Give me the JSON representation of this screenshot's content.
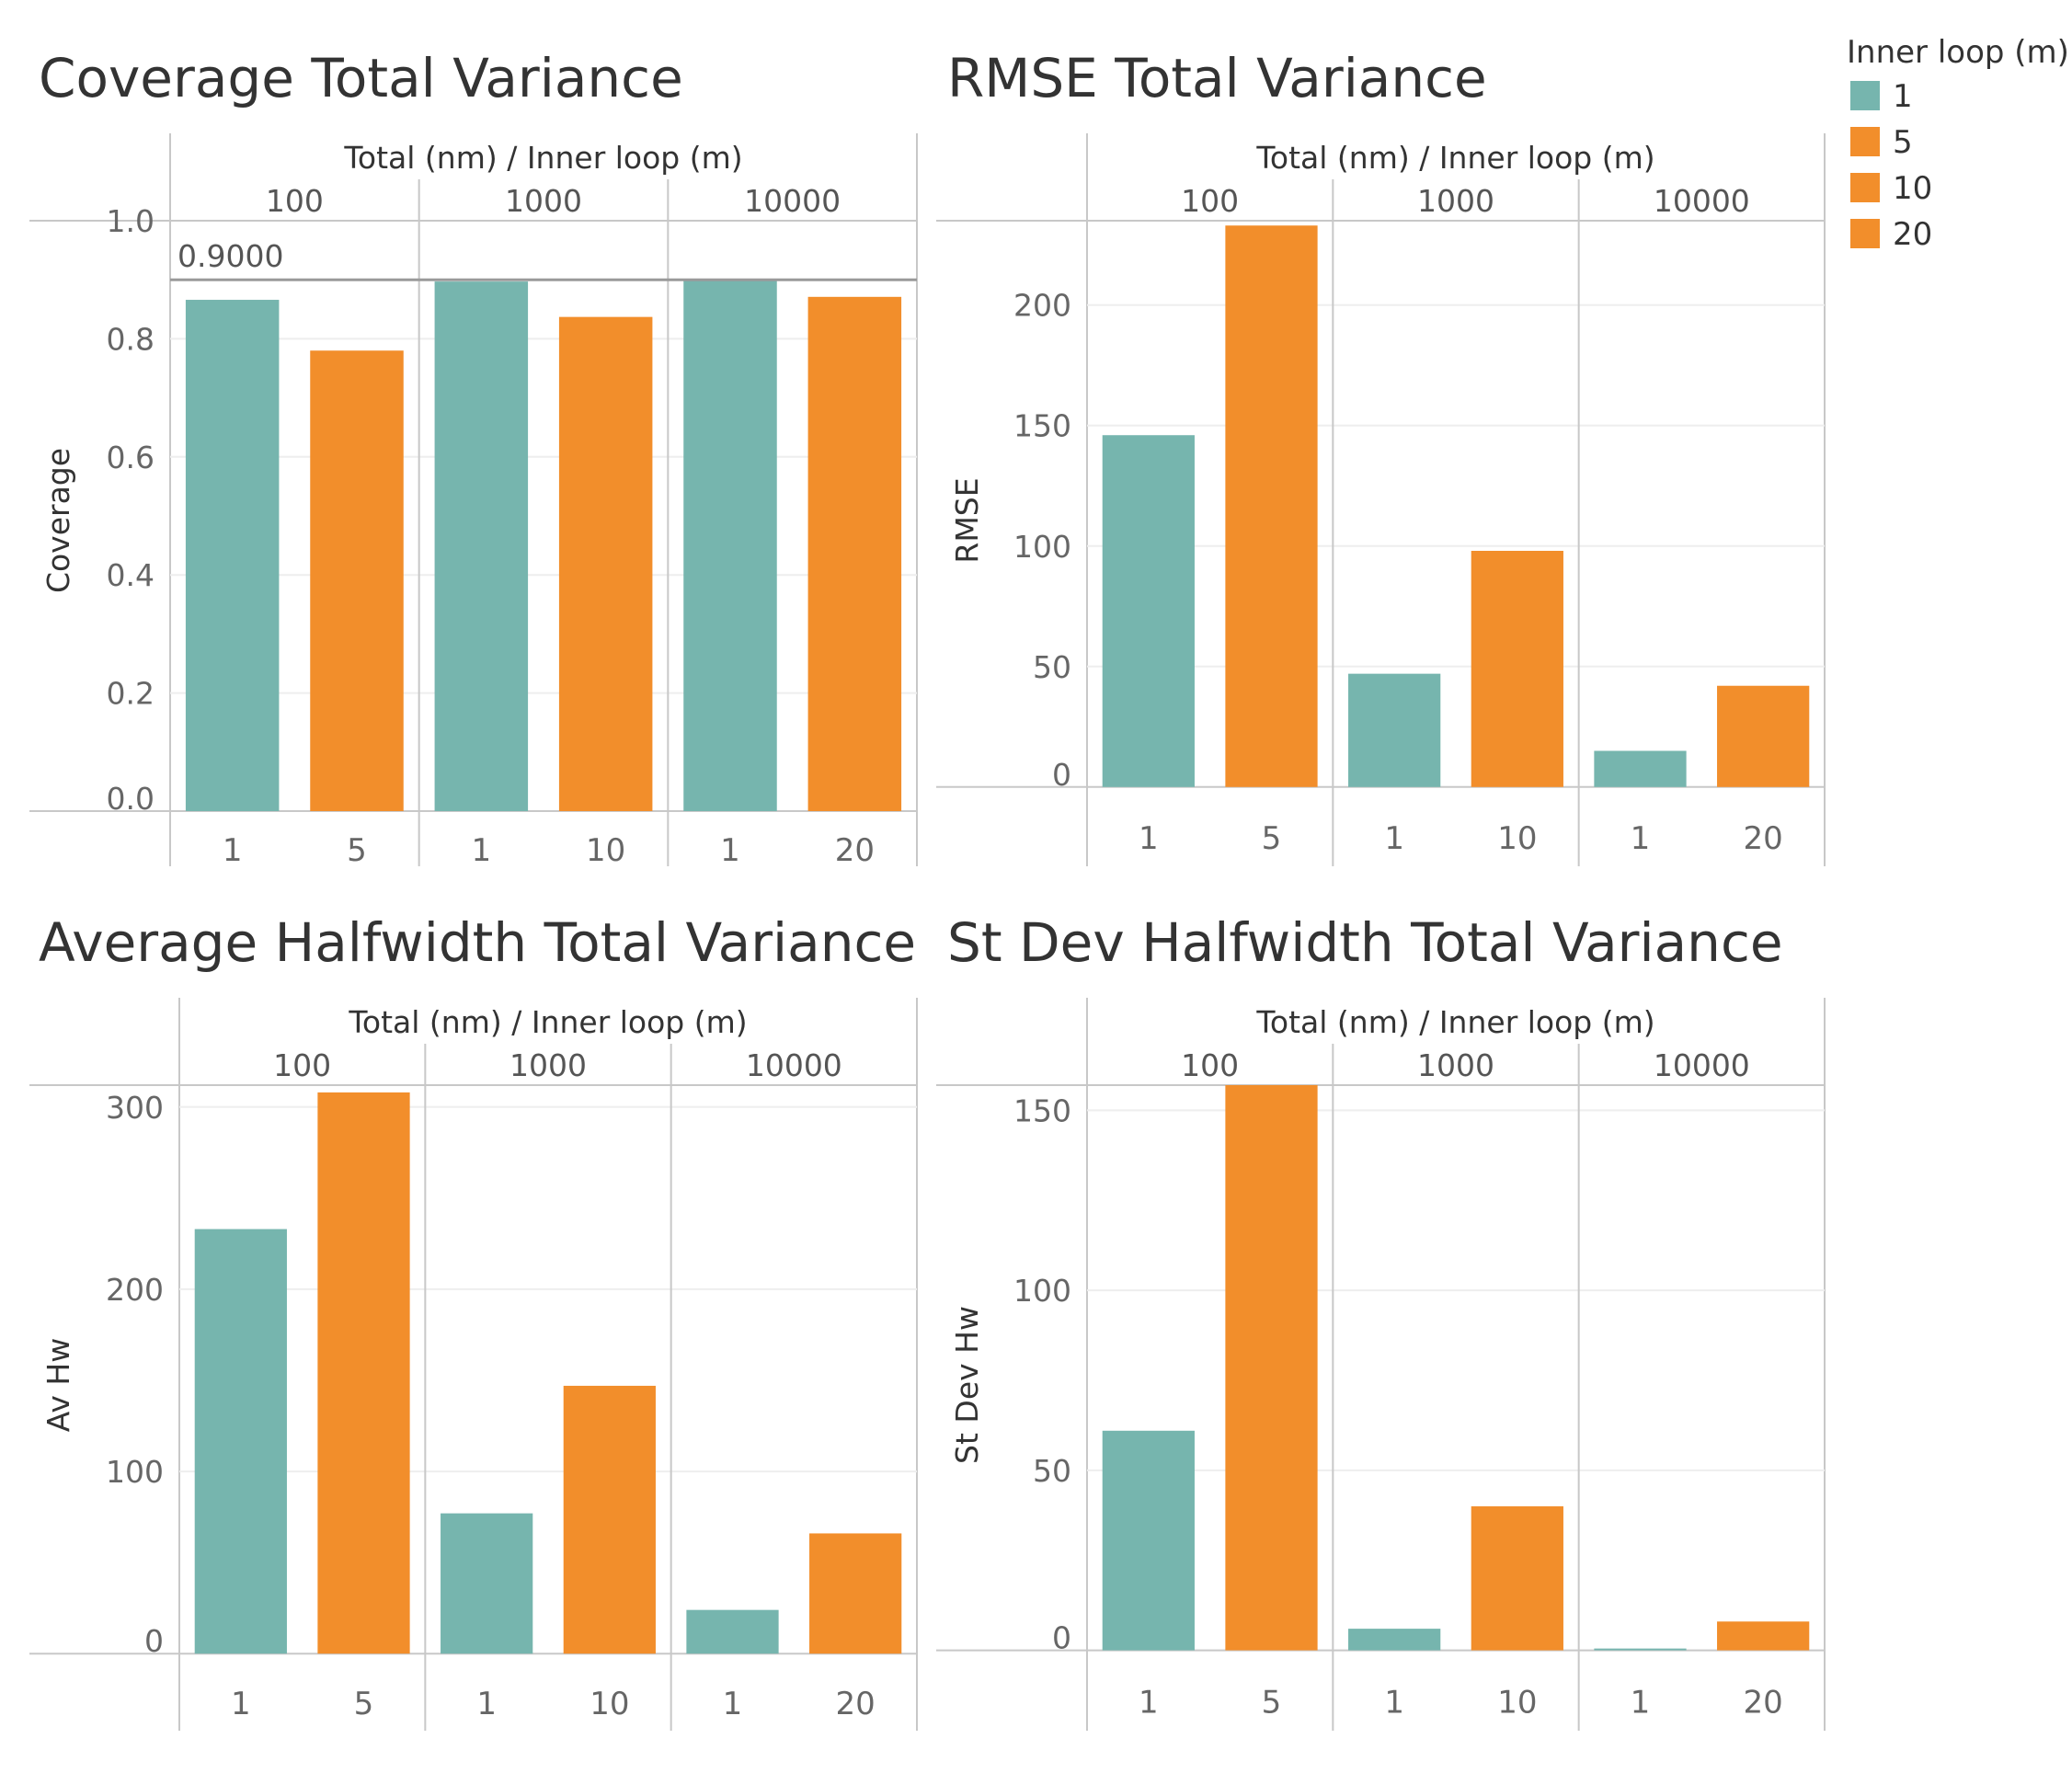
{
  "legend": {
    "title": "Inner loop (m)",
    "items": [
      {
        "label": "1",
        "color": "#76b5ae"
      },
      {
        "label": "5",
        "color": "#f28e2b"
      },
      {
        "label": "10",
        "color": "#f28e2b"
      },
      {
        "label": "20",
        "color": "#f28e2b"
      }
    ]
  },
  "colors": {
    "teal": "#76b5ae",
    "orange": "#f28e2b"
  },
  "chart_data": [
    {
      "type": "bar",
      "title": "Coverage Total Variance",
      "header": "Total (nm) / Inner loop (m)",
      "ylabel": "Coverage",
      "ylim": [
        0,
        1.0
      ],
      "yticks": [
        {
          "value": 0,
          "label": "0.0"
        },
        {
          "value": 0.2,
          "label": "0.2"
        },
        {
          "value": 0.4,
          "label": "0.4"
        },
        {
          "value": 0.6,
          "label": "0.6"
        },
        {
          "value": 0.8,
          "label": "0.8"
        },
        {
          "value": 1.0,
          "label": "1.0"
        }
      ],
      "reference_line": {
        "value": 0.9,
        "label": "0.9000"
      },
      "groups": [
        {
          "total": "100",
          "bars": [
            {
              "inner": "1",
              "value": 0.866,
              "color": "teal"
            },
            {
              "inner": "5",
              "value": 0.78,
              "color": "orange"
            }
          ]
        },
        {
          "total": "1000",
          "bars": [
            {
              "inner": "1",
              "value": 0.897,
              "color": "teal"
            },
            {
              "inner": "10",
              "value": 0.837,
              "color": "orange"
            }
          ]
        },
        {
          "total": "10000",
          "bars": [
            {
              "inner": "1",
              "value": 0.9,
              "color": "teal"
            },
            {
              "inner": "20",
              "value": 0.871,
              "color": "orange"
            }
          ]
        }
      ]
    },
    {
      "type": "bar",
      "title": "RMSE Total Variance",
      "header": "Total (nm) / Inner loop (m)",
      "ylabel": "RMSE",
      "ylim": [
        -10,
        235
      ],
      "yticks": [
        {
          "value": 0,
          "label": "0"
        },
        {
          "value": 50,
          "label": "50"
        },
        {
          "value": 100,
          "label": "100"
        },
        {
          "value": 150,
          "label": "150"
        },
        {
          "value": 200,
          "label": "200"
        }
      ],
      "groups": [
        {
          "total": "100",
          "bars": [
            {
              "inner": "1",
              "value": 146,
              "color": "teal"
            },
            {
              "inner": "5",
              "value": 233,
              "color": "orange"
            }
          ]
        },
        {
          "total": "1000",
          "bars": [
            {
              "inner": "1",
              "value": 47,
              "color": "teal"
            },
            {
              "inner": "10",
              "value": 98,
              "color": "orange"
            }
          ]
        },
        {
          "total": "10000",
          "bars": [
            {
              "inner": "1",
              "value": 15,
              "color": "teal"
            },
            {
              "inner": "20",
              "value": 42,
              "color": "orange"
            }
          ]
        }
      ]
    },
    {
      "type": "bar",
      "title": "Average Halfwidth Total Variance",
      "header": "Total (nm) / Inner loop (m)",
      "ylabel": "Av Hw",
      "ylim": [
        -12,
        312
      ],
      "yticks": [
        {
          "value": 0,
          "label": "0"
        },
        {
          "value": 100,
          "label": "100"
        },
        {
          "value": 200,
          "label": "200"
        },
        {
          "value": 300,
          "label": "300"
        }
      ],
      "groups": [
        {
          "total": "100",
          "bars": [
            {
              "inner": "1",
              "value": 233,
              "color": "teal"
            },
            {
              "inner": "5",
              "value": 308,
              "color": "orange"
            }
          ]
        },
        {
          "total": "1000",
          "bars": [
            {
              "inner": "1",
              "value": 77,
              "color": "teal"
            },
            {
              "inner": "10",
              "value": 147,
              "color": "orange"
            }
          ]
        },
        {
          "total": "10000",
          "bars": [
            {
              "inner": "1",
              "value": 24,
              "color": "teal"
            },
            {
              "inner": "20",
              "value": 66,
              "color": "orange"
            }
          ]
        }
      ]
    },
    {
      "type": "bar",
      "title": "St Dev Halfwidth Total Variance",
      "header": "Total (nm) / Inner loop (m)",
      "ylabel": "St Dev Hw",
      "ylim": [
        -7,
        157
      ],
      "yticks": [
        {
          "value": 0,
          "label": "0"
        },
        {
          "value": 50,
          "label": "50"
        },
        {
          "value": 100,
          "label": "100"
        },
        {
          "value": 150,
          "label": "150"
        }
      ],
      "groups": [
        {
          "total": "100",
          "bars": [
            {
              "inner": "1",
              "value": 61,
              "color": "teal"
            },
            {
              "inner": "5",
              "value": 157,
              "color": "orange"
            }
          ]
        },
        {
          "total": "1000",
          "bars": [
            {
              "inner": "1",
              "value": 6,
              "color": "teal"
            },
            {
              "inner": "10",
              "value": 40,
              "color": "orange"
            }
          ]
        },
        {
          "total": "10000",
          "bars": [
            {
              "inner": "1",
              "value": 0.5,
              "color": "teal"
            },
            {
              "inner": "20",
              "value": 8,
              "color": "orange"
            }
          ]
        }
      ]
    }
  ]
}
